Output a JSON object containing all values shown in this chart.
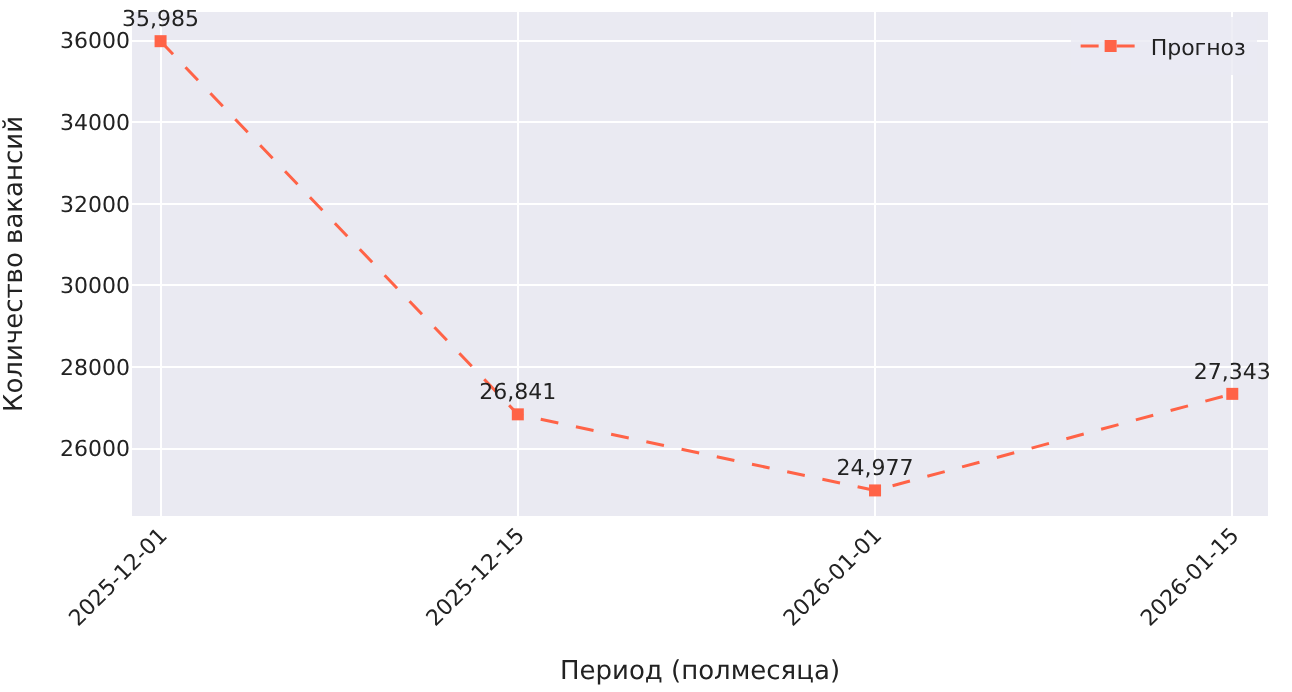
{
  "chart_data": {
    "type": "line",
    "xlabel": "Период (полмесяца)",
    "ylabel": "Количество вакансий",
    "categories": [
      "2025-12-01",
      "2025-12-15",
      "2026-01-01",
      "2026-01-15"
    ],
    "series": [
      {
        "name": "Прогноз",
        "color": "#ff6347",
        "values": [
          35985,
          26841,
          24977,
          27343
        ],
        "value_labels": [
          "35,985",
          "26,841",
          "24,977",
          "27,343"
        ]
      }
    ],
    "ylim": [
      24350,
      36700
    ],
    "yticks": [
      26000,
      28000,
      30000,
      32000,
      34000,
      36000
    ],
    "grid": true,
    "legend": "top right",
    "marker": "square",
    "line_style": "dashed"
  }
}
